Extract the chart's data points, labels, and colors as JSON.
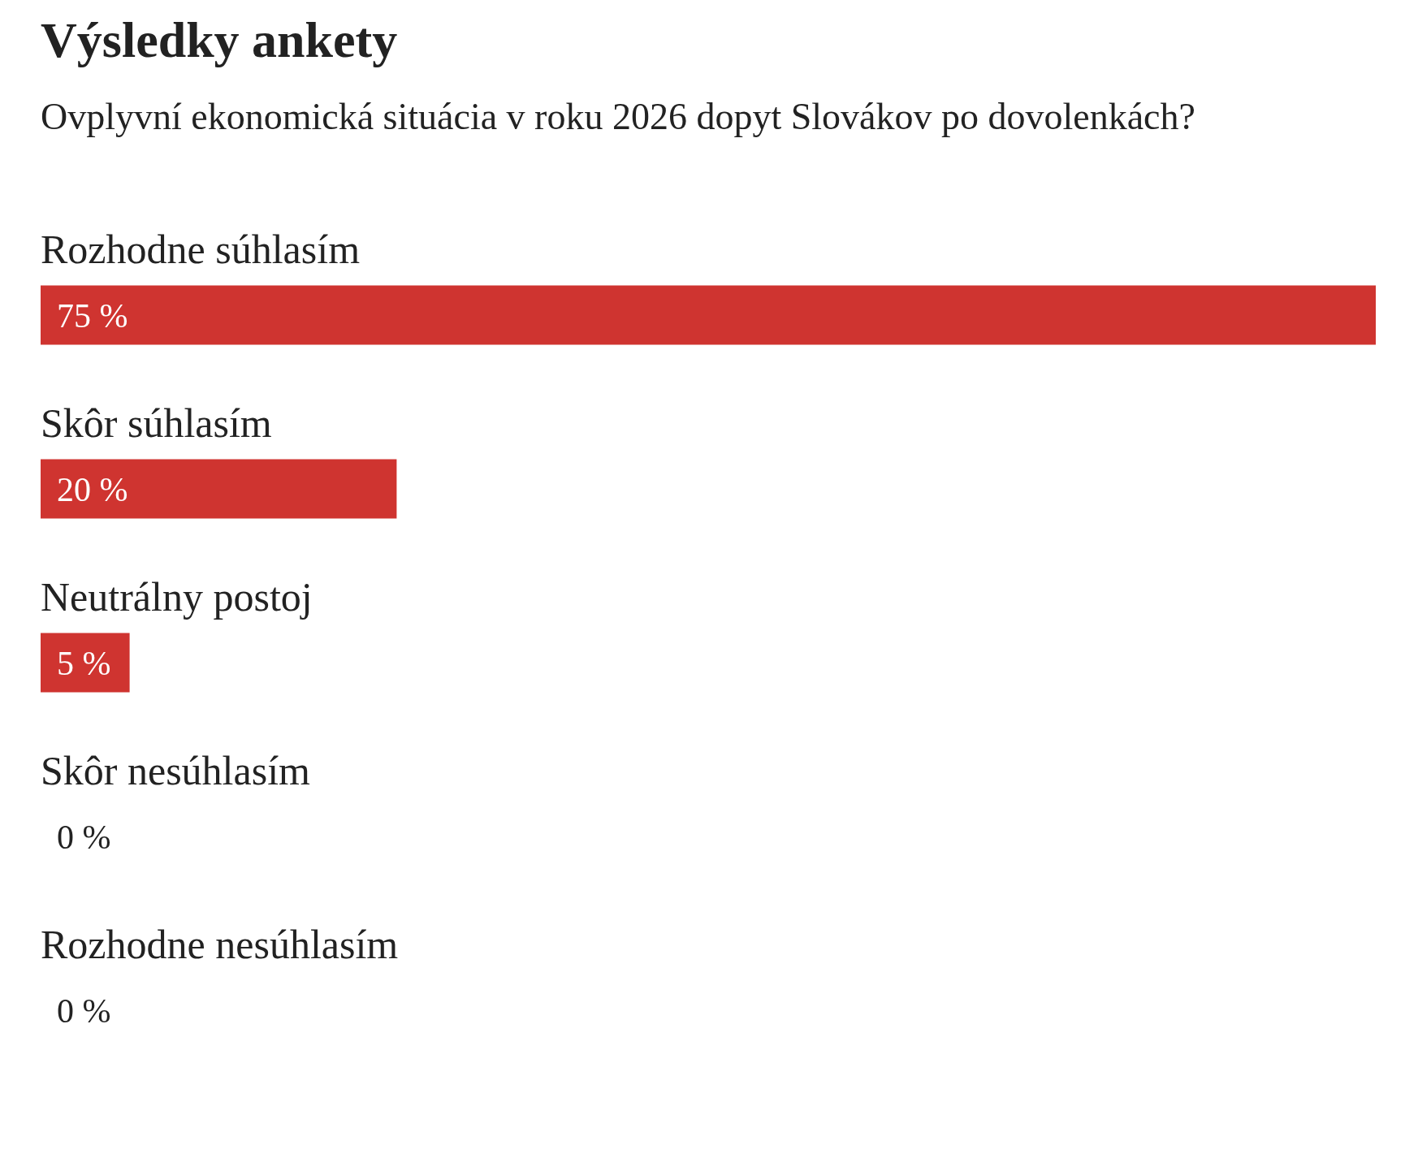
{
  "chart_data": {
    "type": "bar",
    "orientation": "horizontal",
    "title": "Výsledky ankety",
    "subtitle": "Ovplyvní ekonomická situácia v roku 2026 dopyt Slovákov po dovolenkách?",
    "categories": [
      "Rozhodne súhlasím",
      "Skôr súhlasím",
      "Neutrálny postoj",
      "Skôr nesúhlasím",
      "Rozhodne nesúhlasím"
    ],
    "values": [
      75,
      20,
      5,
      0,
      0
    ],
    "value_labels": [
      "75 %",
      "20 %",
      "5 %",
      "0 %",
      "0 %"
    ],
    "color": "#cf3430"
  }
}
